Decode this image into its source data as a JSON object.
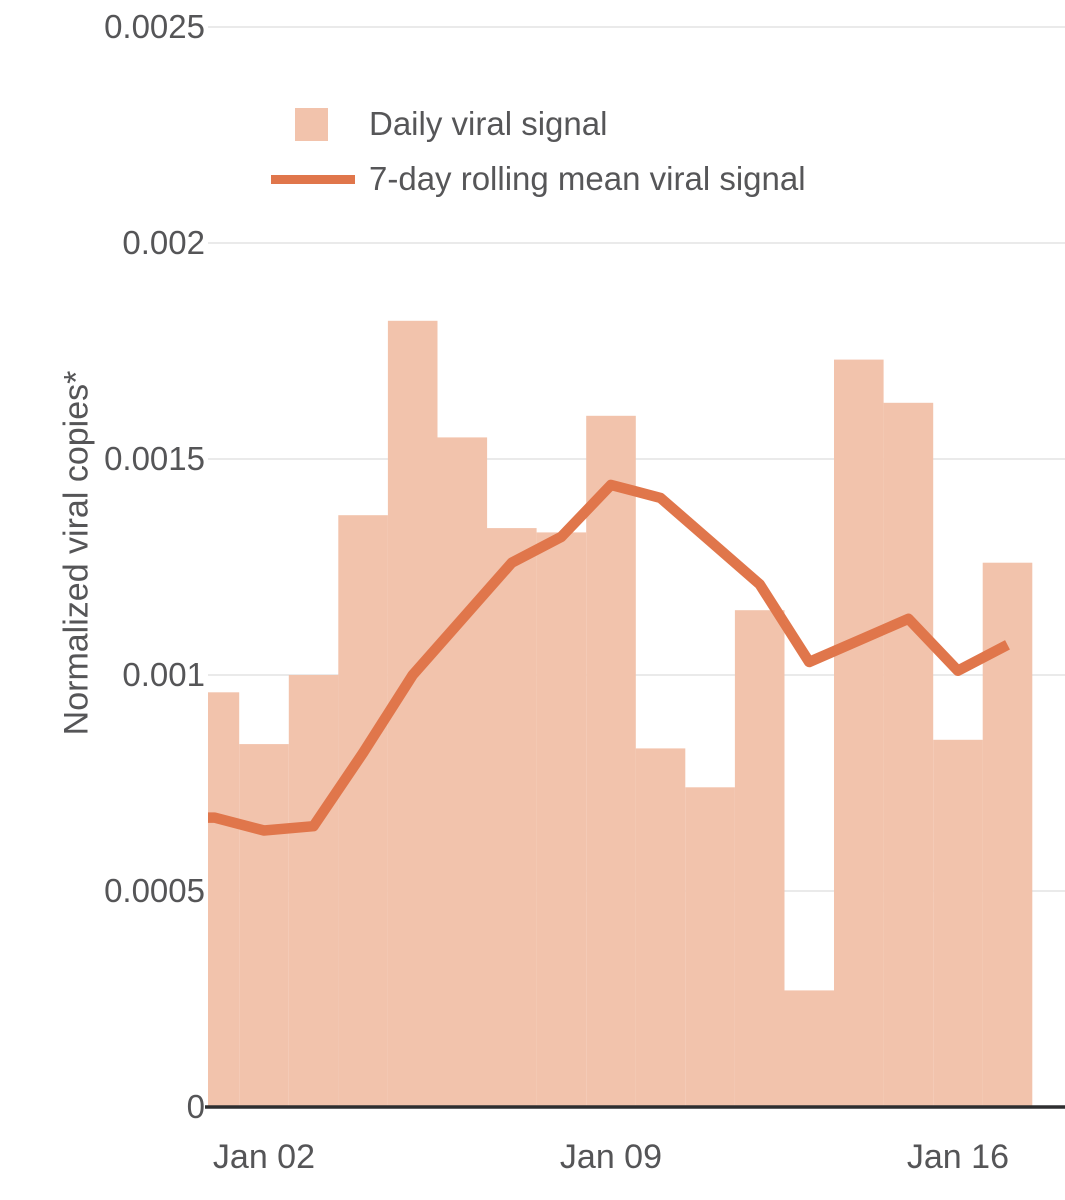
{
  "chart_data": {
    "type": "bar",
    "title": "",
    "xlabel": "",
    "ylabel": "Normalized viral copies*",
    "categories": [
      "Jan 01",
      "Jan 02",
      "Jan 03",
      "Jan 04",
      "Jan 05",
      "Jan 06",
      "Jan 07",
      "Jan 08",
      "Jan 09",
      "Jan 10",
      "Jan 11",
      "Jan 12",
      "Jan 13",
      "Jan 14",
      "Jan 15",
      "Jan 16",
      "Jan 17"
    ],
    "x_tick_labels": [
      "Jan 02",
      "Jan 09",
      "Jan 16"
    ],
    "y_tick_labels": [
      "0",
      "0.0005",
      "0.001",
      "0.0015",
      "0.002",
      "0.0025"
    ],
    "y_tick_values": [
      0,
      0.0005,
      0.001,
      0.0015,
      0.002,
      0.0025
    ],
    "ylim": [
      0,
      0.00256
    ],
    "grid": true,
    "legend_position": "inside-top-left",
    "series": [
      {
        "name": "Daily viral signal",
        "type": "bar",
        "color": "#f2c3ac",
        "values": [
          0.00096,
          0.00084,
          0.001,
          0.00137,
          0.00182,
          0.00155,
          0.00134,
          0.00133,
          0.0016,
          0.00083,
          0.00074,
          0.00115,
          0.00027,
          0.00173,
          0.00163,
          0.00085,
          0.00126
        ]
      },
      {
        "name": "7-day rolling mean viral signal",
        "type": "line",
        "color": "#e0764b",
        "values": [
          0.00067,
          0.00064,
          0.00065,
          0.00082,
          0.001,
          0.00113,
          0.00126,
          0.00132,
          0.00144,
          0.00141,
          0.00131,
          0.00121,
          0.00103,
          0.00108,
          0.00113,
          0.00101,
          0.00107
        ]
      }
    ]
  },
  "colors": {
    "bar_fill": "#f2c3ac",
    "line_stroke": "#e0764b",
    "gridline": "#eaeaea",
    "axis_line": "#2e2e30",
    "tick_text": "#555557",
    "background": "#ffffff"
  }
}
